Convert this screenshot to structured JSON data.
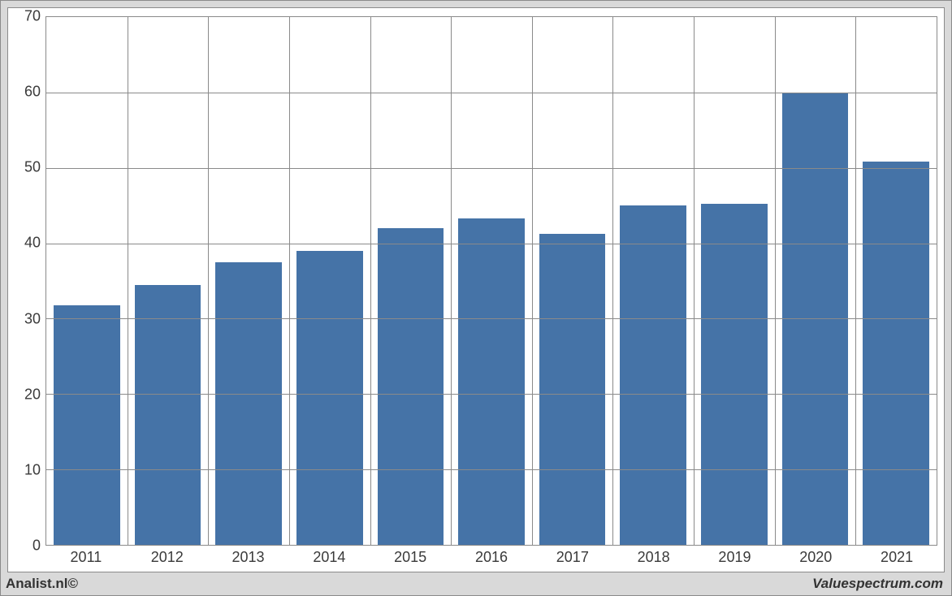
{
  "chart": {
    "type": "bar",
    "categories": [
      "2011",
      "2012",
      "2013",
      "2014",
      "2015",
      "2016",
      "2017",
      "2018",
      "2019",
      "2020",
      "2021"
    ],
    "values": [
      31.8,
      34.5,
      37.5,
      39.0,
      42.0,
      43.3,
      41.3,
      45.0,
      45.2,
      60.0,
      50.8
    ],
    "bar_color": "#4573a7",
    "background_color": "#ffffff",
    "grid_color": "#8a8a8a",
    "frame_background": "#d9d9d9",
    "border_color": "#8a8a8a",
    "ylim": [
      0,
      70
    ],
    "ytick_step": 10,
    "yticks": [
      0,
      10,
      20,
      30,
      40,
      50,
      60,
      70
    ],
    "bar_width_ratio": 0.82,
    "label_fontsize": 18,
    "label_color": "#3a3a3a"
  },
  "footer": {
    "left": "Analist.nl©",
    "right": "Valuespectrum.com"
  }
}
